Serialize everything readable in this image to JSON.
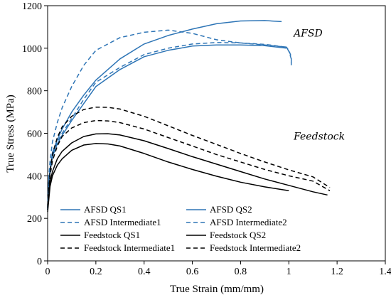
{
  "chart_data": {
    "type": "line",
    "xlabel": "True Strain (mm/mm)",
    "ylabel": "True Stress (MPa)",
    "xlim": [
      0,
      1.4
    ],
    "ylim": [
      0,
      1200
    ],
    "xticks": [
      "0",
      "0.2",
      "0.4",
      "0.6",
      "0.8",
      "1",
      "1.2",
      "1.4"
    ],
    "yticks": [
      "0",
      "200",
      "400",
      "600",
      "800",
      "1000",
      "1200"
    ],
    "grid": false,
    "legend_position": "lower-left",
    "annotations": [
      {
        "text": "AFSD",
        "x": 1.02,
        "y": 1055
      },
      {
        "text": "Feedstock",
        "x": 1.02,
        "y": 570
      }
    ],
    "series": [
      {
        "name": "AFSD QS1",
        "color": "#2e75b6",
        "dash": "solid",
        "x": [
          0,
          0.005,
          0.01,
          0.02,
          0.04,
          0.06,
          0.1,
          0.15,
          0.2,
          0.3,
          0.4,
          0.5,
          0.6,
          0.7,
          0.8,
          0.9,
          0.97
        ],
        "y": [
          250,
          380,
          430,
          510,
          570,
          620,
          700,
          780,
          850,
          950,
          1020,
          1060,
          1090,
          1115,
          1128,
          1130,
          1125
        ]
      },
      {
        "name": "AFSD QS2",
        "color": "#2e75b6",
        "dash": "solid",
        "x": [
          0,
          0.005,
          0.01,
          0.02,
          0.04,
          0.06,
          0.1,
          0.15,
          0.2,
          0.3,
          0.4,
          0.5,
          0.6,
          0.7,
          0.8,
          0.9,
          0.99
        ],
        "y": [
          240,
          360,
          420,
          490,
          550,
          590,
          660,
          740,
          820,
          900,
          960,
          990,
          1010,
          1015,
          1015,
          1012,
          1000
        ]
      },
      {
        "name": "AFSD Intermediate1",
        "color": "#2e75b6",
        "dash": "dashed",
        "x": [
          0,
          0.005,
          0.01,
          0.02,
          0.04,
          0.06,
          0.1,
          0.15,
          0.2,
          0.3,
          0.4,
          0.5,
          0.6,
          0.7,
          0.8,
          0.9,
          0.99,
          1.0,
          1.01,
          1.01
        ],
        "y": [
          250,
          400,
          470,
          560,
          650,
          720,
          820,
          920,
          990,
          1050,
          1075,
          1085,
          1070,
          1040,
          1025,
          1015,
          1005,
          990,
          960,
          930
        ]
      },
      {
        "name": "AFSD Intermediate2",
        "color": "#2e75b6",
        "dash": "dashed",
        "x": [
          0,
          0.005,
          0.01,
          0.02,
          0.04,
          0.06,
          0.1,
          0.15,
          0.2,
          0.3,
          0.4,
          0.5,
          0.6,
          0.7,
          0.8,
          0.9,
          0.99,
          1.0,
          1.01,
          1.01
        ],
        "y": [
          240,
          370,
          430,
          500,
          560,
          600,
          670,
          760,
          840,
          910,
          970,
          1000,
          1020,
          1027,
          1025,
          1018,
          1005,
          985,
          950,
          920
        ]
      },
      {
        "name": "Feedstock QS1",
        "color": "#000000",
        "dash": "solid",
        "x": [
          0,
          0.01,
          0.02,
          0.04,
          0.06,
          0.1,
          0.15,
          0.2,
          0.25,
          0.3,
          0.4,
          0.5,
          0.6,
          0.7,
          0.8,
          0.9,
          1.0
        ],
        "y": [
          230,
          350,
          400,
          450,
          480,
          520,
          545,
          552,
          550,
          540,
          505,
          465,
          430,
          398,
          370,
          348,
          330
        ]
      },
      {
        "name": "Feedstock QS2",
        "color": "#000000",
        "dash": "solid",
        "x": [
          0,
          0.01,
          0.02,
          0.04,
          0.06,
          0.1,
          0.15,
          0.2,
          0.25,
          0.3,
          0.4,
          0.5,
          0.6,
          0.7,
          0.8,
          0.9,
          1.0,
          1.1,
          1.16
        ],
        "y": [
          240,
          370,
          420,
          480,
          515,
          555,
          585,
          597,
          598,
          592,
          565,
          528,
          490,
          455,
          420,
          385,
          355,
          325,
          310
        ]
      },
      {
        "name": "Feedstock Intermediate1",
        "color": "#000000",
        "dash": "dashed",
        "x": [
          0,
          0.01,
          0.02,
          0.04,
          0.06,
          0.1,
          0.15,
          0.2,
          0.25,
          0.3,
          0.4,
          0.5,
          0.6,
          0.7,
          0.8,
          0.9,
          1.0,
          1.1,
          1.17
        ],
        "y": [
          260,
          420,
          500,
          580,
          630,
          680,
          712,
          723,
          722,
          714,
          680,
          635,
          590,
          548,
          505,
          465,
          428,
          395,
          345
        ]
      },
      {
        "name": "Feedstock Intermediate2",
        "color": "#000000",
        "dash": "dashed",
        "x": [
          0,
          0.01,
          0.02,
          0.04,
          0.06,
          0.1,
          0.15,
          0.2,
          0.25,
          0.3,
          0.4,
          0.5,
          0.6,
          0.7,
          0.8,
          0.9,
          1.0,
          1.1,
          1.17
        ],
        "y": [
          250,
          400,
          470,
          540,
          585,
          625,
          650,
          660,
          658,
          650,
          620,
          580,
          540,
          500,
          465,
          430,
          400,
          375,
          330
        ]
      }
    ]
  }
}
